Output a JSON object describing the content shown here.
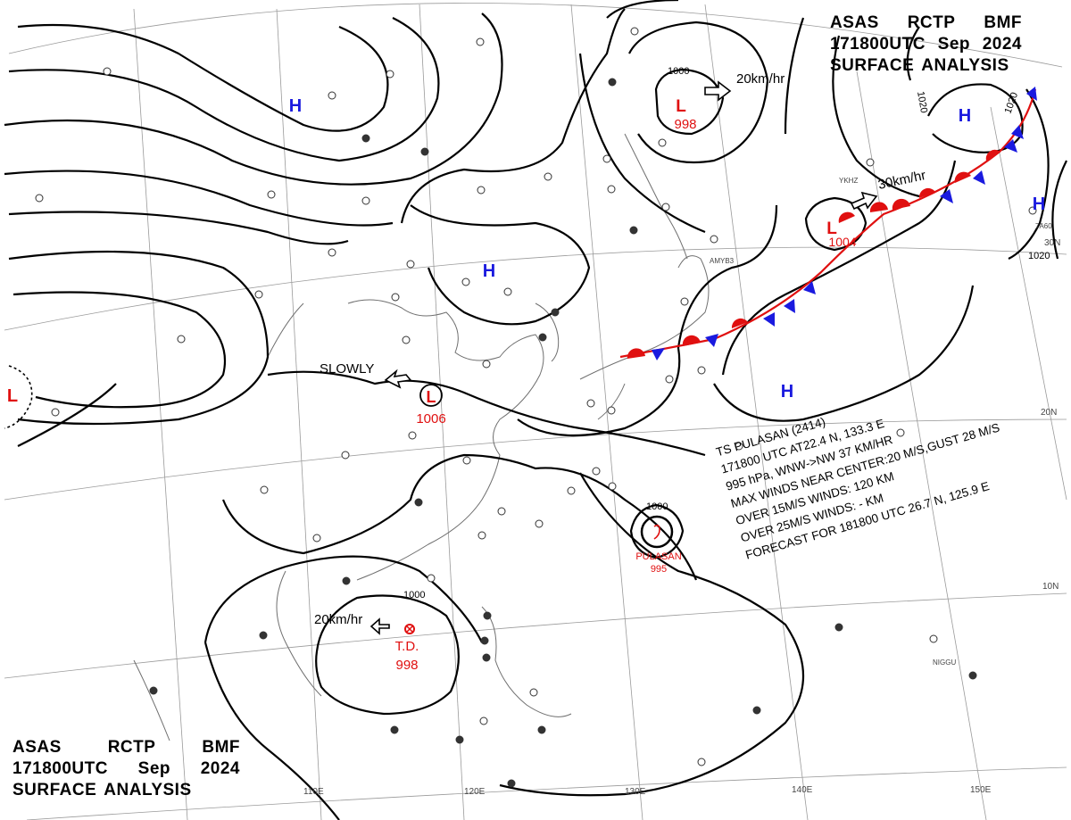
{
  "header": {
    "lines": [
      [
        "ASAS",
        "RCTP",
        "BMF"
      ],
      [
        "171800UTC",
        "Sep",
        "2024"
      ],
      [
        "SURFACE",
        "ANALYSIS"
      ]
    ]
  },
  "typhoon": {
    "lines": [
      "TS  PULASAN  (2414)",
      "171800 UTC  AT22.4 N, 133.3 E",
      "995 hPa, WNW->NW  37 KM/HR",
      "MAX WINDS NEAR CENTER:20 M/S,GUST 28 M/S",
      "OVER 15M/S WINDS: 120 KM",
      "OVER 25M/S WINDS: - KM",
      "FORECAST FOR 181800 UTC 26.7 N, 125.9 E"
    ]
  },
  "pressure_systems": [
    {
      "symbol": "H",
      "value": "",
      "color": "#1a1adf"
    },
    {
      "symbol": "L",
      "value": "998",
      "color": "#e01010"
    },
    {
      "symbol": "H",
      "value": "",
      "color": "#1a1adf"
    },
    {
      "symbol": "H",
      "value": "",
      "color": "#1a1adf"
    },
    {
      "symbol": "H",
      "value": "",
      "color": "#1a1adf"
    },
    {
      "symbol": "L",
      "value": "1004",
      "color": "#e01010"
    },
    {
      "symbol": "L",
      "value": "1006",
      "color": "#e01010"
    },
    {
      "symbol": "H",
      "value": "",
      "color": "#1a1adf"
    },
    {
      "symbol": "L",
      "value": "",
      "color": "#e01010"
    },
    {
      "symbol": "PULASAN",
      "value": "995",
      "color": "#e01010"
    },
    {
      "symbol": "T.D.",
      "value": "998",
      "color": "#e01010"
    }
  ],
  "motion_labels": [
    "20km/hr",
    "30km/hr",
    "SLOWLY",
    "20km/hr"
  ],
  "isobar_labels": [
    "1000",
    "1020",
    "1020",
    "1020",
    "1000",
    "1000"
  ],
  "longitudes": [
    "110E",
    "120E",
    "130E",
    "140E",
    "150E"
  ],
  "latitudes": [
    "30N",
    "20N",
    "10N"
  ],
  "station_codes": [
    "AMYB3",
    "YKHZ",
    "7A60",
    "NIGGU"
  ],
  "colors": {
    "high": "#1a1adf",
    "low": "#e01010",
    "front_warm": "#e01010",
    "front_cold": "#1a1adf",
    "isobar": "#000000",
    "grid": "#888888"
  }
}
